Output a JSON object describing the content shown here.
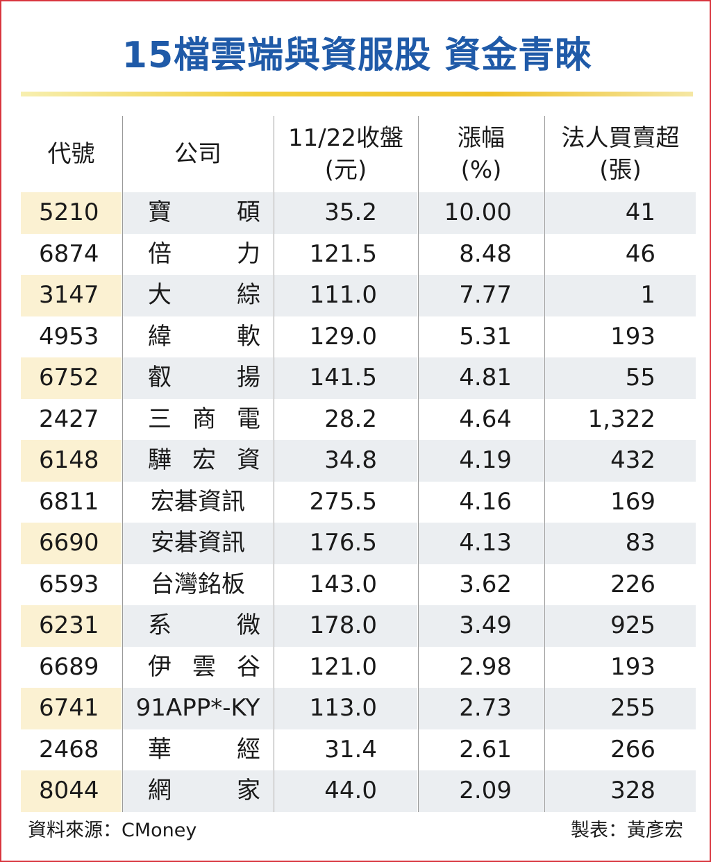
{
  "title": "15檔雲端與資服股  資金青睞",
  "headers": {
    "code": "代號",
    "company": "公司",
    "close_line1": "11/22收盤",
    "close_line2": "(元)",
    "change_line1": "漲幅",
    "change_line2": "(%)",
    "inst_line1": "法人買賣超",
    "inst_line2": "(張)"
  },
  "rows": [
    {
      "code": "5210",
      "name": [
        "寶",
        "碩"
      ],
      "close": "35.2",
      "change": "10.00",
      "inst": "41"
    },
    {
      "code": "6874",
      "name": [
        "倍",
        "力"
      ],
      "close": "121.5",
      "change": "8.48",
      "inst": "46"
    },
    {
      "code": "3147",
      "name": [
        "大",
        "綜"
      ],
      "close": "111.0",
      "change": "7.77",
      "inst": "1"
    },
    {
      "code": "4953",
      "name": [
        "緯",
        "軟"
      ],
      "close": "129.0",
      "change": "5.31",
      "inst": "193"
    },
    {
      "code": "6752",
      "name": [
        "叡",
        "揚"
      ],
      "close": "141.5",
      "change": "4.81",
      "inst": "55"
    },
    {
      "code": "2427",
      "name": [
        "三",
        "商",
        "電"
      ],
      "close": "28.2",
      "change": "4.64",
      "inst": "1,322"
    },
    {
      "code": "6148",
      "name": [
        "驊",
        "宏",
        "資"
      ],
      "close": "34.8",
      "change": "4.19",
      "inst": "432"
    },
    {
      "code": "6811",
      "name": [
        "宏碁資訊"
      ],
      "close": "275.5",
      "change": "4.16",
      "inst": "169"
    },
    {
      "code": "6690",
      "name": [
        "安碁資訊"
      ],
      "close": "176.5",
      "change": "4.13",
      "inst": "83"
    },
    {
      "code": "6593",
      "name": [
        "台灣銘板"
      ],
      "close": "143.0",
      "change": "3.62",
      "inst": "226"
    },
    {
      "code": "6231",
      "name": [
        "系",
        "微"
      ],
      "close": "178.0",
      "change": "3.49",
      "inst": "925"
    },
    {
      "code": "6689",
      "name": [
        "伊",
        "雲",
        "谷"
      ],
      "close": "121.0",
      "change": "2.98",
      "inst": "193"
    },
    {
      "code": "6741",
      "name": [
        "91APP*-KY"
      ],
      "close": "113.0",
      "change": "2.73",
      "inst": "255"
    },
    {
      "code": "2468",
      "name": [
        "華",
        "經"
      ],
      "close": "31.4",
      "change": "2.61",
      "inst": "266"
    },
    {
      "code": "8044",
      "name": [
        "網",
        "家"
      ],
      "close": "44.0",
      "change": "2.09",
      "inst": "328"
    }
  ],
  "footer": {
    "source": "資料來源：CMoney",
    "maker": "製表：黃彥宏"
  },
  "colors": {
    "title": "#1f5aa8",
    "border": "#d9363e",
    "rule": "#efc12a",
    "stripe_code": "#fbf1d2",
    "stripe_body": "#ebeef1"
  }
}
